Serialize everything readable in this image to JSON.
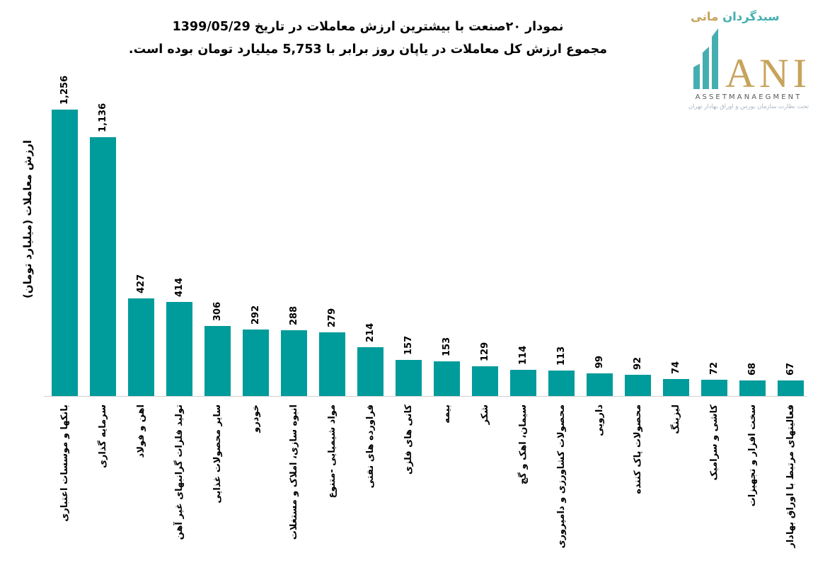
{
  "title": {
    "line1": "نمودار  ۲۰صنعت با بیشترین ارزش معاملات در تاریخ 1399/05/29",
    "line2": "مجموع ارزش  کل معاملات در یاپان روز برابر با 5,753 میلیارد تومان بوده است."
  },
  "logo": {
    "brand_fa_first": "سبدگردان",
    "brand_fa_second": "مانی",
    "brand_en": "ANI",
    "subtitle_en": "ASSETMANAEGMENT",
    "tagline_fa": "تحت نظارت سازمان بورس و اوراق بهادار تهران",
    "colors": {
      "teal": "#45AEB1",
      "gold": "#C7A35B",
      "subtitle_gray": "#58595B",
      "tagline_gray": "#A9B6C2"
    }
  },
  "chart_data": {
    "type": "bar",
    "title": "نمودار ۲۰صنعت با بیشترین ارزش معاملات در تاریخ 1399/05/29",
    "subtitle": "مجموع ارزش کل معاملات در یاپان روز برابر با 5,753 میلیارد تومان بوده است.",
    "xlabel": "",
    "ylabel": "ارزش معاملات (میلیارد تومان)",
    "ylim": [
      0,
      1300
    ],
    "grid": false,
    "legend": false,
    "y_axis_ticks_visible": false,
    "bar_color": "#009B9B",
    "categories": [
      "بانکها و موسسات اعتباری",
      "سرمایه گذاری",
      "اهن و فولاد",
      "تولید فلزات گرانبهای غیر آهن",
      "سایر محصولات غذایی",
      "خودرو",
      "انبوه سازی، املاک و مستغلات",
      "مواد شیمیایی -متنوع",
      "فراورده های نفتی",
      "کانی های فلزی",
      "بیمه",
      "شکر",
      "سیمان، اهک و گچ",
      "محصولات کشاورزی و دامپروری",
      "دارویی",
      "محصولات پاک کننده",
      "لیزینگ",
      "کاشی و سرامیک",
      "سخت افزار و تجهیزات",
      "فعالیتهای مرتبط با اوراق بهادار"
    ],
    "values": [
      1256,
      1136,
      427,
      414,
      306,
      292,
      288,
      279,
      214,
      157,
      153,
      129,
      114,
      113,
      99,
      92,
      74,
      72,
      68,
      67
    ],
    "value_labels": [
      "1,256",
      "1,136",
      "427",
      "414",
      "306",
      "292",
      "288",
      "279",
      "214",
      "157",
      "153",
      "129",
      "114",
      "113",
      "99",
      "92",
      "74",
      "72",
      "68",
      "67"
    ]
  }
}
